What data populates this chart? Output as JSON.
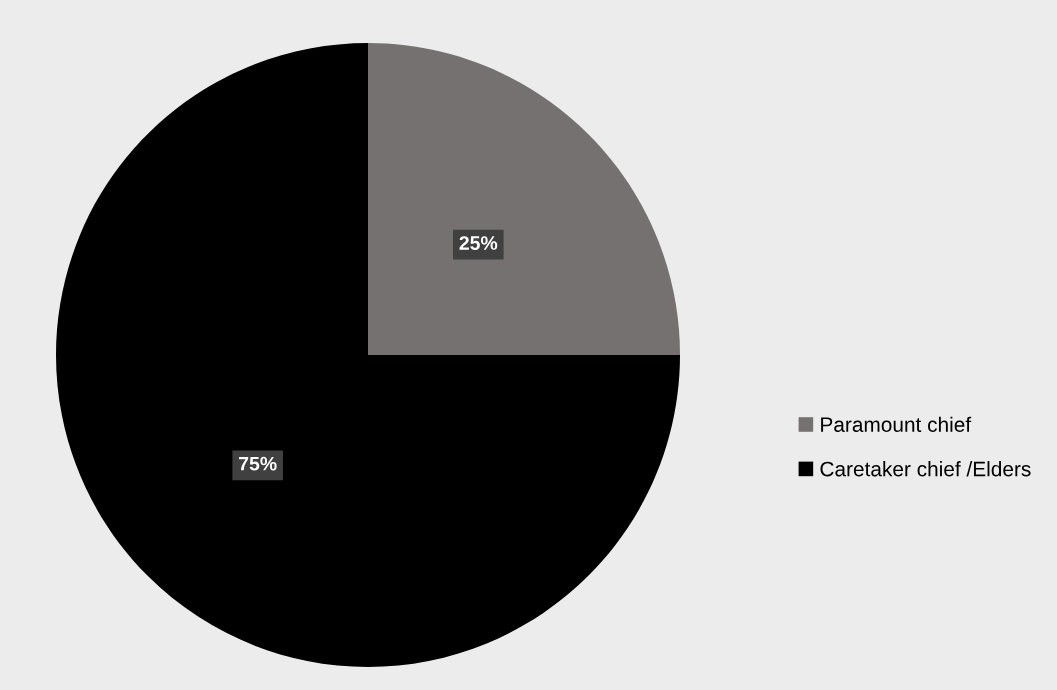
{
  "chart_data": {
    "type": "pie",
    "categories": [
      "Paramount chief",
      "Caretaker chief /Elders"
    ],
    "values": [
      25,
      75
    ],
    "colors": [
      "#767171",
      "#000000"
    ],
    "value_labels": [
      "25%",
      "75%"
    ],
    "legend": "right"
  }
}
